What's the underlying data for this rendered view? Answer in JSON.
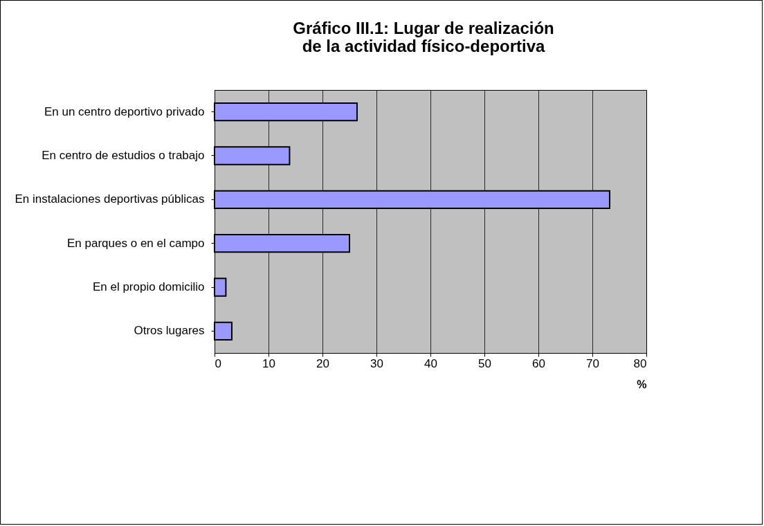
{
  "chart_data": {
    "type": "bar",
    "orientation": "horizontal",
    "title": "Gráfico III.1: Lugar de realización de la actividad físico-deportiva",
    "categories": [
      "En un centro deportivo privado",
      "En centro de estudios o trabajo",
      "En instalaciones deportivas públicas",
      "En parques o en el campo",
      "En el propio domicilio",
      "Otros lugares"
    ],
    "values": [
      26.4,
      13.9,
      73.2,
      25.0,
      2.1,
      3.2
    ],
    "color": "#9999ff",
    "xlim": [
      0,
      80
    ],
    "xticks": [
      0,
      10,
      20,
      30,
      40,
      50,
      60,
      70,
      80
    ],
    "xlabel": "%",
    "grid": "x"
  }
}
